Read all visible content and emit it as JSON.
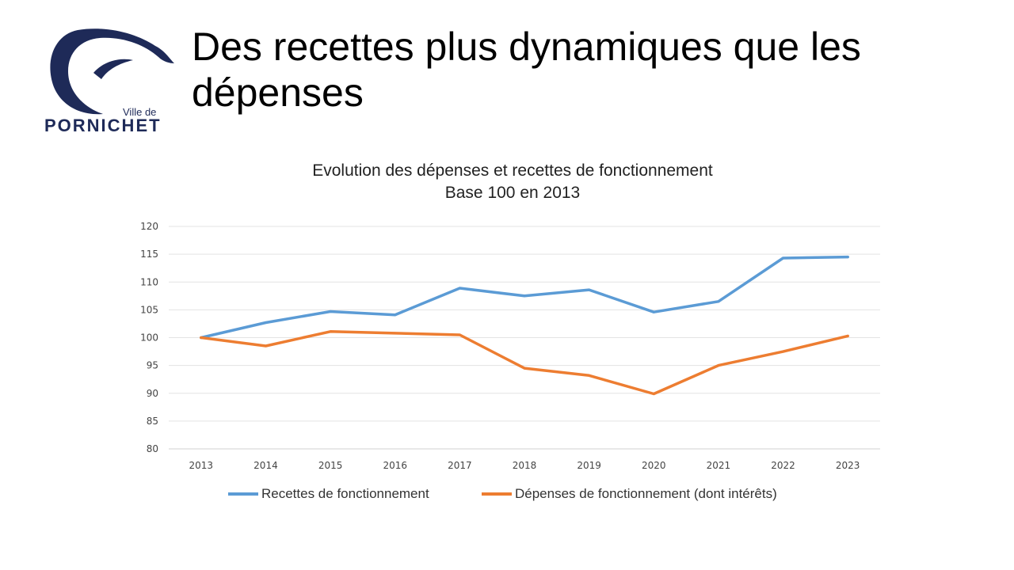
{
  "logo": {
    "line1": "Ville de",
    "line2": "PORNICHET",
    "color": "#1e2a58"
  },
  "slide": {
    "title_line1": "Des recettes plus dynamiques que les",
    "title_line2": "dépenses"
  },
  "chart_data": {
    "type": "line",
    "title": "Evolution des dépenses et recettes de fonctionnement",
    "subtitle": "Base 100 en 2013",
    "categories": [
      "2013",
      "2014",
      "2015",
      "2016",
      "2017",
      "2018",
      "2019",
      "2020",
      "2021",
      "2022",
      "2023"
    ],
    "ylim": [
      80,
      120
    ],
    "yticks": [
      80,
      85,
      90,
      95,
      100,
      105,
      110,
      115,
      120
    ],
    "grid": true,
    "legend_position": "bottom",
    "series": [
      {
        "name": "Recettes de fonctionnement",
        "color": "#5b9bd5",
        "values": [
          100,
          102.7,
          104.7,
          104.1,
          108.9,
          107.5,
          108.6,
          104.6,
          106.5,
          114.3,
          114.5
        ]
      },
      {
        "name": "Dépenses de fonctionnement (dont intérêts)",
        "color": "#ed7d31",
        "values": [
          100,
          98.5,
          101.1,
          100.8,
          100.5,
          94.5,
          93.2,
          89.9,
          95.0,
          97.5,
          100.3
        ]
      }
    ]
  }
}
